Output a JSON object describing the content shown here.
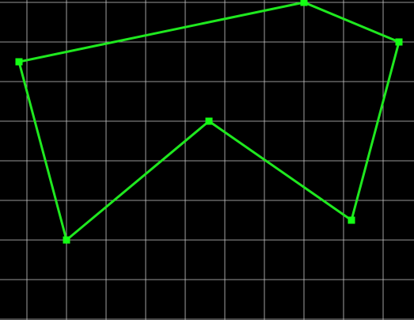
{
  "canvas": {
    "background": "#000000",
    "grid_color": "#c8c8c8",
    "line_color": "#1fe81f",
    "vertex_color": "#14ff14"
  },
  "grid": {
    "visible": true,
    "spacing_units": 1,
    "x_range": [
      0,
      10.46
    ],
    "y_range": [
      0,
      8.08
    ]
  },
  "shape": {
    "type": "open polyline",
    "vertices": [
      {
        "x": 4.8,
        "y": 4.0
      },
      {
        "x": 1.2,
        "y": 1.0
      },
      {
        "x": 0.0,
        "y": 5.5
      },
      {
        "x": 7.2,
        "y": 7.0
      },
      {
        "x": 9.6,
        "y": 6.0
      },
      {
        "x": 8.4,
        "y": 1.5
      },
      {
        "x": 4.8,
        "y": 4.0
      }
    ]
  }
}
